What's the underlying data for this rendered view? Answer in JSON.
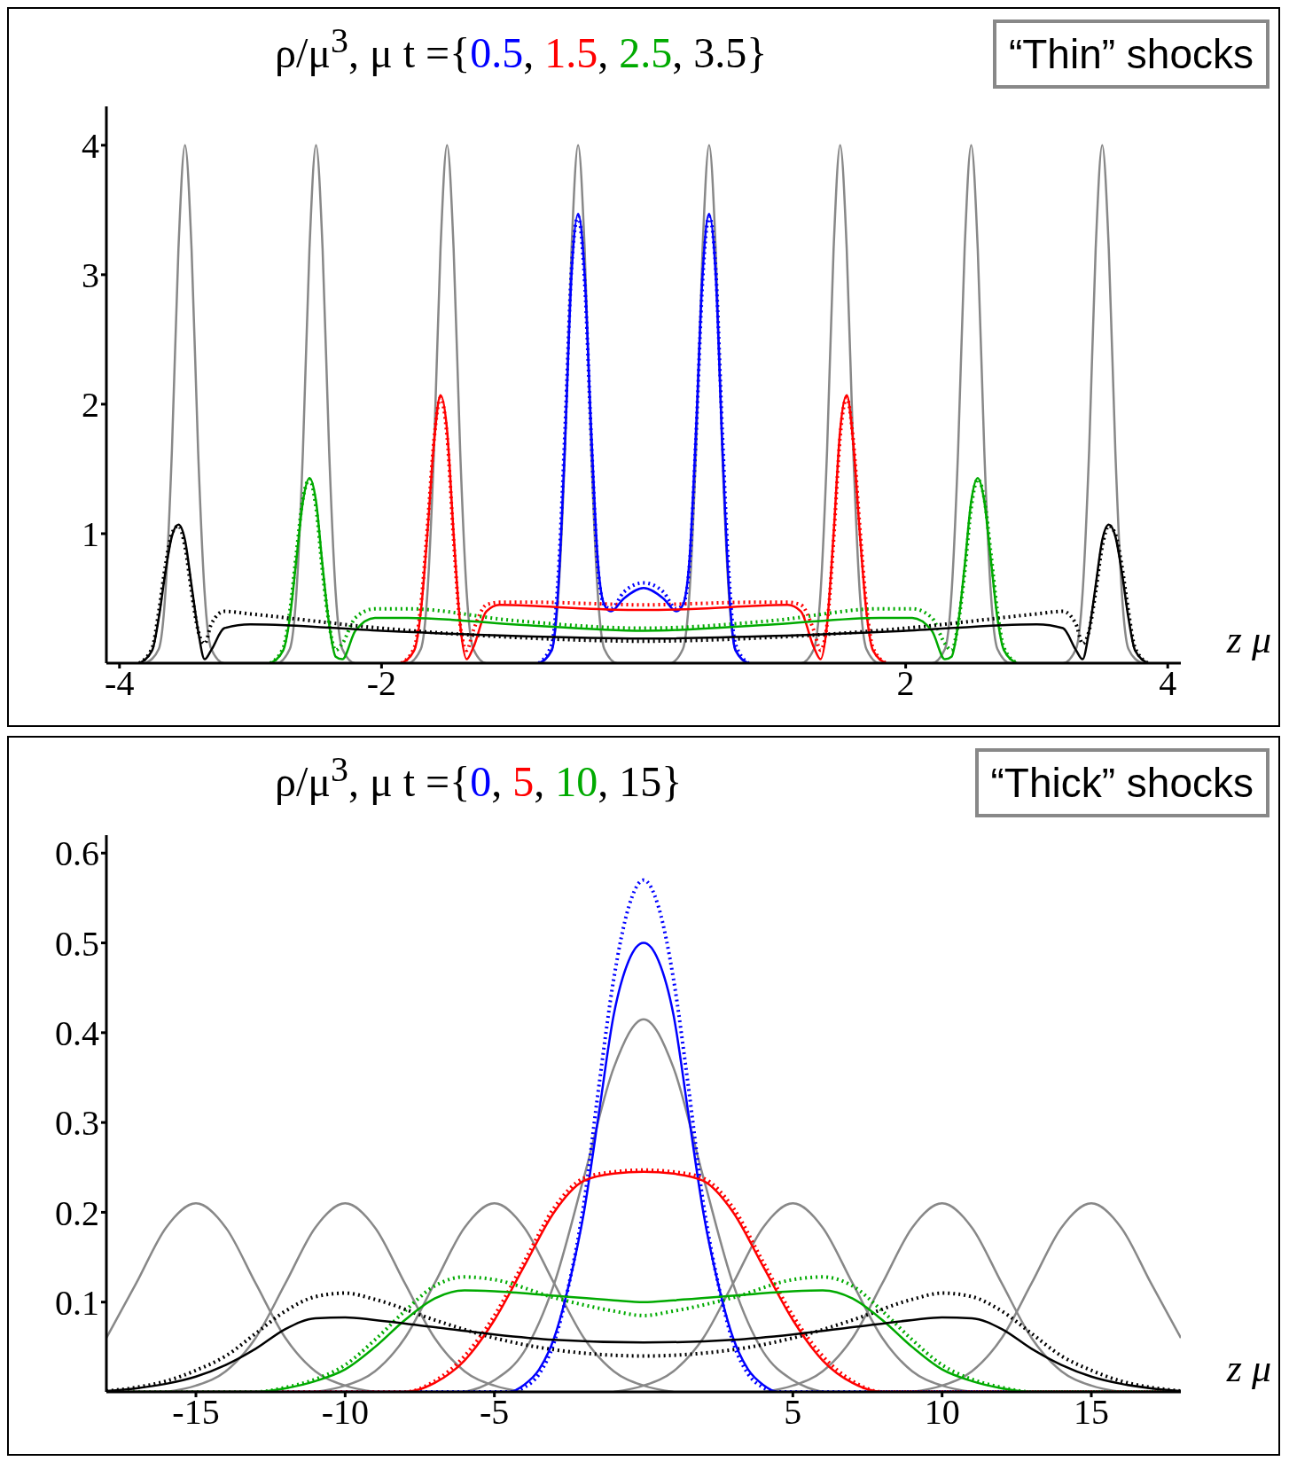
{
  "chart_data": [
    {
      "type": "line",
      "title": "ρ/μ$^{3}$, μ t ={0.5, 1.5, 2.5, 3.5}",
      "xlabel": "z μ",
      "annotations": [
        "“Thin” shocks"
      ],
      "xlim": [
        -4.1,
        4.1
      ],
      "ylim": [
        0,
        4.3
      ],
      "xticks": [
        -4,
        -2,
        2,
        4
      ],
      "yticks": [
        1,
        2,
        3,
        4
      ],
      "marker": "none",
      "line_style": "solid",
      "series": [
        {
          "color": "#888888",
          "x": [
            -3.8,
            -3.7,
            -3.65,
            -3.6,
            -3.55,
            -3.5,
            -3.45,
            -3.4,
            -3.35,
            -3.3,
            -3.2,
            -2.8,
            -2.7,
            -2.65,
            -2.6,
            -2.55,
            -2.5,
            -2.45,
            -2.4,
            -2.35,
            -2.3,
            -2.2,
            -1.8,
            -1.7,
            -1.65,
            -1.6,
            -1.55,
            -1.5,
            -1.45,
            -1.4,
            -1.35,
            -1.3,
            -1.2,
            -0.8,
            -0.7,
            -0.65,
            -0.6,
            -0.55,
            -0.5,
            -0.45,
            -0.4,
            -0.35,
            -0.3,
            -0.2,
            0.2,
            0.3,
            0.35,
            0.4,
            0.45,
            0.5,
            0.55,
            0.6,
            0.65,
            0.7,
            0.8,
            1.2,
            1.3,
            1.35,
            1.4,
            1.45,
            1.5,
            1.55,
            1.6,
            1.65,
            1.7,
            1.8,
            2.2,
            2.3,
            2.35,
            2.4,
            2.45,
            2.5,
            2.55,
            2.6,
            2.65,
            2.7,
            2.8,
            3.2,
            3.3,
            3.35,
            3.4,
            3.45,
            3.5,
            3.55,
            3.6,
            3.65,
            3.7,
            3.8
          ],
          "values": [
            0,
            0.11,
            0.54,
            1.64,
            3.2,
            4,
            3.2,
            1.64,
            0.54,
            0.11,
            0,
            0,
            0.11,
            0.54,
            1.64,
            3.2,
            4,
            3.2,
            1.64,
            0.54,
            0.11,
            0,
            0,
            0.11,
            0.54,
            1.64,
            3.2,
            4,
            3.2,
            1.64,
            0.54,
            0.11,
            0,
            0,
            0.11,
            0.54,
            1.64,
            3.2,
            4,
            3.2,
            1.64,
            0.54,
            0.11,
            0,
            0,
            0.11,
            0.54,
            1.64,
            3.2,
            4,
            3.2,
            1.64,
            0.54,
            0.11,
            0,
            0,
            0.11,
            0.54,
            1.64,
            3.2,
            4,
            3.2,
            1.64,
            0.54,
            0.11,
            0,
            0,
            0.11,
            0.54,
            1.64,
            3.2,
            4,
            3.2,
            1.64,
            0.54,
            0.11,
            0,
            0,
            0.11,
            0.54,
            1.64,
            3.2,
            4,
            3.2,
            1.64,
            0.54,
            0.11,
            0
          ]
        },
        {
          "color": "#0000ff",
          "line_style": "dotted",
          "x": [
            -0.8,
            -0.7,
            -0.65,
            -0.6,
            -0.55,
            -0.5,
            -0.45,
            -0.4,
            -0.35,
            -0.3,
            -0.25,
            -0.15,
            0,
            0.15,
            0.25,
            0.3,
            0.35,
            0.4,
            0.45,
            0.5,
            0.55,
            0.6,
            0.65,
            0.7,
            0.8
          ],
          "values": [
            0,
            0.15,
            0.7,
            1.8,
            3.05,
            3.45,
            2.95,
            1.75,
            0.75,
            0.45,
            0.42,
            0.55,
            0.62,
            0.55,
            0.42,
            0.45,
            0.75,
            1.75,
            2.95,
            3.45,
            3.05,
            1.8,
            0.7,
            0.15,
            0
          ]
        },
        {
          "color": "#ff0000",
          "line_style": "dotted",
          "x": [
            -1.85,
            -1.75,
            -1.7,
            -1.65,
            -1.6,
            -1.55,
            -1.5,
            -1.45,
            -1.4,
            -1.35,
            -1.3,
            -1.2,
            -1.1,
            -0.8,
            -0.4,
            0,
            0.4,
            0.8,
            1.1,
            1.2,
            1.3,
            1.35,
            1.4,
            1.45,
            1.5,
            1.55,
            1.6,
            1.65,
            1.7,
            1.75,
            1.85
          ],
          "values": [
            0,
            0.12,
            0.45,
            1.05,
            1.72,
            2.05,
            1.75,
            0.95,
            0.3,
            0.1,
            0.25,
            0.45,
            0.47,
            0.47,
            0.46,
            0.45,
            0.46,
            0.47,
            0.47,
            0.45,
            0.25,
            0.1,
            0.3,
            0.95,
            1.75,
            2.05,
            1.72,
            1.05,
            0.45,
            0.12,
            0
          ]
        },
        {
          "color": "#00aa00",
          "line_style": "dotted",
          "x": [
            -2.85,
            -2.75,
            -2.7,
            -2.65,
            -2.6,
            -2.55,
            -2.5,
            -2.45,
            -2.4,
            -2.35,
            -2.3,
            -2.2,
            -2.05,
            -1.8,
            -1,
            0,
            1,
            1.8,
            2.05,
            2.2,
            2.3,
            2.35,
            2.4,
            2.45,
            2.5,
            2.55,
            2.6,
            2.65,
            2.7,
            2.75,
            2.85
          ],
          "values": [
            0,
            0.12,
            0.4,
            0.85,
            1.27,
            1.42,
            1.2,
            0.7,
            0.3,
            0.1,
            0.15,
            0.35,
            0.42,
            0.42,
            0.33,
            0.27,
            0.33,
            0.42,
            0.42,
            0.35,
            0.15,
            0.1,
            0.3,
            0.7,
            1.2,
            1.42,
            1.27,
            0.85,
            0.4,
            0.12,
            0
          ]
        },
        {
          "color": "#000000",
          "line_style": "dotted",
          "x": [
            -3.85,
            -3.75,
            -3.7,
            -3.65,
            -3.6,
            -3.55,
            -3.5,
            -3.45,
            -3.4,
            -3.35,
            -3.3,
            -3.2,
            -3,
            -2,
            -1,
            0,
            1,
            2,
            3,
            3.2,
            3.3,
            3.35,
            3.4,
            3.45,
            3.5,
            3.55,
            3.6,
            3.65,
            3.7,
            3.75,
            3.85
          ],
          "values": [
            0,
            0.12,
            0.4,
            0.75,
            1,
            1.06,
            0.9,
            0.55,
            0.25,
            0.15,
            0.3,
            0.4,
            0.38,
            0.27,
            0.2,
            0.17,
            0.2,
            0.27,
            0.38,
            0.4,
            0.3,
            0.15,
            0.25,
            0.55,
            0.9,
            1.06,
            1,
            0.75,
            0.4,
            0.12,
            0
          ]
        },
        {
          "color": "#0000ff",
          "x": [
            -0.8,
            -0.7,
            -0.65,
            -0.6,
            -0.55,
            -0.5,
            -0.45,
            -0.4,
            -0.35,
            -0.3,
            -0.25,
            -0.15,
            0,
            0.15,
            0.25,
            0.3,
            0.35,
            0.4,
            0.45,
            0.5,
            0.55,
            0.6,
            0.65,
            0.7,
            0.8
          ],
          "values": [
            0,
            0.1,
            0.6,
            1.7,
            3,
            3.47,
            3,
            1.8,
            0.8,
            0.45,
            0.4,
            0.5,
            0.58,
            0.5,
            0.4,
            0.45,
            0.8,
            1.8,
            3,
            3.47,
            3,
            1.7,
            0.6,
            0.1,
            0
          ]
        },
        {
          "color": "#ff0000",
          "x": [
            -1.85,
            -1.75,
            -1.7,
            -1.65,
            -1.6,
            -1.55,
            -1.5,
            -1.45,
            -1.4,
            -1.35,
            -1.3,
            -1.2,
            -1.1,
            -0.8,
            -0.4,
            0,
            0.4,
            0.8,
            1.1,
            1.2,
            1.3,
            1.35,
            1.4,
            1.45,
            1.5,
            1.55,
            1.6,
            1.65,
            1.7,
            1.75,
            1.85
          ],
          "values": [
            0,
            0.1,
            0.4,
            1,
            1.7,
            2.07,
            1.8,
            1,
            0.3,
            0.03,
            0.12,
            0.4,
            0.45,
            0.44,
            0.42,
            0.41,
            0.42,
            0.44,
            0.45,
            0.4,
            0.12,
            0.03,
            0.3,
            1,
            1.8,
            2.07,
            1.7,
            1,
            0.4,
            0.1,
            0
          ]
        },
        {
          "color": "#00aa00",
          "x": [
            -2.85,
            -2.75,
            -2.7,
            -2.65,
            -2.6,
            -2.55,
            -2.5,
            -2.45,
            -2.4,
            -2.35,
            -2.3,
            -2.2,
            -2.05,
            -1.8,
            -1,
            0,
            1,
            1.8,
            2.05,
            2.2,
            2.3,
            2.35,
            2.4,
            2.45,
            2.5,
            2.55,
            2.6,
            2.65,
            2.7,
            2.75,
            2.85
          ],
          "values": [
            0,
            0.1,
            0.35,
            0.8,
            1.25,
            1.43,
            1.25,
            0.75,
            0.3,
            0.05,
            0.03,
            0.25,
            0.35,
            0.35,
            0.3,
            0.25,
            0.3,
            0.35,
            0.35,
            0.25,
            0.03,
            0.05,
            0.3,
            0.75,
            1.25,
            1.43,
            1.25,
            0.8,
            0.35,
            0.1,
            0
          ]
        },
        {
          "color": "#000000",
          "x": [
            -3.85,
            -3.75,
            -3.7,
            -3.65,
            -3.6,
            -3.55,
            -3.5,
            -3.45,
            -3.4,
            -3.35,
            -3.3,
            -3.2,
            -3,
            -2,
            -1,
            0,
            1,
            2,
            3,
            3.2,
            3.3,
            3.35,
            3.4,
            3.45,
            3.5,
            3.55,
            3.6,
            3.65,
            3.7,
            3.75,
            3.85
          ],
          "values": [
            0,
            0.1,
            0.35,
            0.7,
            0.98,
            1.07,
            0.95,
            0.6,
            0.25,
            0.03,
            0.1,
            0.27,
            0.3,
            0.25,
            0.21,
            0.19,
            0.21,
            0.25,
            0.3,
            0.27,
            0.1,
            0.03,
            0.25,
            0.6,
            0.95,
            1.07,
            0.98,
            0.7,
            0.35,
            0.1,
            0
          ]
        }
      ]
    },
    {
      "type": "line",
      "title": "ρ/μ$^{3}$, μ t ={0, 5, 10, 15}",
      "xlabel": "z μ",
      "annotations": [
        "“Thick” shocks"
      ],
      "xlim": [
        -18,
        18
      ],
      "ylim": [
        0,
        0.62
      ],
      "xticks": [
        -15,
        -10,
        -5,
        5,
        10,
        15
      ],
      "yticks": [
        0.1,
        0.2,
        0.3,
        0.4,
        0.5,
        0.6
      ],
      "marker": "none",
      "line_style": "solid",
      "series": [
        {
          "color": "#888888",
          "x": [
            -18,
            -17,
            -16,
            -15,
            -14,
            -13,
            -12,
            -11,
            -10,
            -9
          ],
          "values": [
            0.06,
            0.121,
            0.183,
            0.21,
            0.183,
            0.121,
            0.06,
            0.023,
            0.007,
            0
          ]
        },
        {
          "color": "#888888",
          "x": [
            -16,
            -15,
            -14,
            -13,
            -12,
            -11,
            -10,
            -9,
            -8,
            -7,
            -6,
            -5,
            -4
          ],
          "values": [
            0,
            0.007,
            0.023,
            0.06,
            0.121,
            0.183,
            0.21,
            0.183,
            0.121,
            0.06,
            0.023,
            0.007,
            0
          ]
        },
        {
          "color": "#888888",
          "x": [
            -11,
            -10,
            -9,
            -8,
            -7,
            -6,
            -5,
            -4,
            -3,
            -2,
            -1,
            0,
            1
          ],
          "values": [
            0,
            0.007,
            0.023,
            0.06,
            0.121,
            0.183,
            0.21,
            0.183,
            0.121,
            0.06,
            0.023,
            0.007,
            0
          ]
        },
        {
          "color": "#888888",
          "x": [
            -6,
            -5,
            -4,
            -3,
            -2,
            -1,
            0,
            1,
            2,
            3,
            4,
            5,
            6
          ],
          "values": [
            0,
            0.013,
            0.045,
            0.12,
            0.239,
            0.361,
            0.415,
            0.361,
            0.239,
            0.12,
            0.045,
            0.013,
            0
          ]
        },
        {
          "color": "#888888",
          "x": [
            -1,
            0,
            1,
            2,
            3,
            4,
            5,
            6,
            7,
            8,
            9,
            10,
            11
          ],
          "values": [
            0,
            0.007,
            0.023,
            0.06,
            0.121,
            0.183,
            0.21,
            0.183,
            0.121,
            0.06,
            0.023,
            0.007,
            0
          ]
        },
        {
          "color": "#888888",
          "x": [
            4,
            5,
            6,
            7,
            8,
            9,
            10,
            11,
            12,
            13,
            14,
            15,
            16
          ],
          "values": [
            0,
            0.007,
            0.023,
            0.06,
            0.121,
            0.183,
            0.21,
            0.183,
            0.121,
            0.06,
            0.023,
            0.007,
            0
          ]
        },
        {
          "color": "#888888",
          "x": [
            9,
            10,
            11,
            12,
            13,
            14,
            15,
            16,
            17,
            18
          ],
          "values": [
            0,
            0.007,
            0.023,
            0.06,
            0.121,
            0.183,
            0.21,
            0.183,
            0.121,
            0.06
          ]
        },
        {
          "color": "#0000ff",
          "line_style": "dotted",
          "x": [
            -18,
            -4.5,
            -4,
            -3.5,
            -3,
            -2.5,
            -2,
            -1.5,
            -1,
            -0.5,
            0,
            0.5,
            1,
            1.5,
            2,
            2.5,
            3,
            3.5,
            4,
            4.5,
            18
          ],
          "values": [
            0,
            0,
            0.005,
            0.02,
            0.055,
            0.12,
            0.21,
            0.34,
            0.46,
            0.54,
            0.57,
            0.54,
            0.46,
            0.34,
            0.21,
            0.12,
            0.055,
            0.02,
            0.005,
            0,
            0
          ]
        },
        {
          "color": "#ff0000",
          "line_style": "dotted",
          "x": [
            -18,
            -8,
            -7,
            -6,
            -5,
            -4,
            -3,
            -2,
            -1,
            0,
            1,
            2,
            3,
            4,
            5,
            6,
            7,
            8,
            18
          ],
          "values": [
            0,
            0,
            0.012,
            0.04,
            0.085,
            0.145,
            0.205,
            0.238,
            0.245,
            0.247,
            0.245,
            0.238,
            0.205,
            0.145,
            0.085,
            0.04,
            0.012,
            0,
            0
          ]
        },
        {
          "color": "#00aa00",
          "line_style": "dotted",
          "x": [
            -18,
            -13,
            -12,
            -11,
            -10,
            -9,
            -8,
            -7,
            -6,
            -5,
            -3,
            -1,
            0,
            1,
            3,
            5,
            6,
            7,
            8,
            9,
            10,
            11,
            12,
            13,
            18
          ],
          "values": [
            0,
            0,
            0.005,
            0.014,
            0.03,
            0.058,
            0.09,
            0.118,
            0.128,
            0.125,
            0.105,
            0.09,
            0.085,
            0.09,
            0.105,
            0.125,
            0.128,
            0.118,
            0.09,
            0.058,
            0.03,
            0.014,
            0.005,
            0,
            0
          ]
        },
        {
          "color": "#000000",
          "line_style": "dotted",
          "x": [
            -18,
            -17,
            -16,
            -15,
            -14,
            -13,
            -12,
            -11,
            -10,
            -9,
            -7,
            -5,
            -3,
            0,
            3,
            5,
            7,
            9,
            10,
            11,
            12,
            13,
            14,
            15,
            16,
            17,
            18
          ],
          "values": [
            0.001,
            0.005,
            0.012,
            0.024,
            0.04,
            0.065,
            0.09,
            0.106,
            0.11,
            0.103,
            0.08,
            0.06,
            0.047,
            0.04,
            0.047,
            0.06,
            0.08,
            0.103,
            0.11,
            0.106,
            0.09,
            0.065,
            0.04,
            0.024,
            0.012,
            0.005,
            0.001
          ]
        },
        {
          "color": "#0000ff",
          "x": [
            -18,
            -4.5,
            -4,
            -3.5,
            -3,
            -2.5,
            -2,
            -1.5,
            -1,
            -0.5,
            0,
            0.5,
            1,
            1.5,
            2,
            2.5,
            3,
            3.5,
            4,
            4.5,
            18
          ],
          "values": [
            0,
            0,
            0.008,
            0.025,
            0.06,
            0.12,
            0.2,
            0.31,
            0.42,
            0.48,
            0.5,
            0.48,
            0.42,
            0.31,
            0.2,
            0.12,
            0.06,
            0.025,
            0.008,
            0,
            0
          ]
        },
        {
          "color": "#ff0000",
          "x": [
            -18,
            -8,
            -7,
            -6,
            -5,
            -4,
            -3,
            -2,
            -1,
            0,
            1,
            2,
            3,
            4,
            5,
            6,
            7,
            8,
            18
          ],
          "values": [
            0,
            0,
            0.01,
            0.035,
            0.08,
            0.14,
            0.2,
            0.235,
            0.243,
            0.245,
            0.243,
            0.235,
            0.2,
            0.14,
            0.08,
            0.035,
            0.01,
            0,
            0
          ]
        },
        {
          "color": "#00aa00",
          "x": [
            -18,
            -13,
            -12,
            -11,
            -10,
            -9,
            -8,
            -7,
            -6,
            -5,
            -3,
            -1,
            0,
            1,
            3,
            5,
            6,
            7,
            8,
            9,
            10,
            11,
            12,
            13,
            18
          ],
          "values": [
            0,
            0,
            0.004,
            0.012,
            0.025,
            0.05,
            0.08,
            0.104,
            0.113,
            0.112,
            0.107,
            0.102,
            0.1,
            0.102,
            0.107,
            0.112,
            0.113,
            0.104,
            0.08,
            0.05,
            0.025,
            0.012,
            0.004,
            0,
            0
          ]
        },
        {
          "color": "#000000",
          "x": [
            -18,
            -17,
            -16,
            -15,
            -14,
            -13,
            -12,
            -11,
            -10,
            -9,
            -7,
            -5,
            -3,
            0,
            3,
            5,
            7,
            9,
            10,
            11,
            12,
            13,
            14,
            15,
            16,
            17,
            18
          ],
          "values": [
            0.001,
            0.004,
            0.009,
            0.017,
            0.03,
            0.048,
            0.07,
            0.082,
            0.083,
            0.08,
            0.072,
            0.064,
            0.058,
            0.055,
            0.058,
            0.064,
            0.072,
            0.08,
            0.083,
            0.082,
            0.07,
            0.048,
            0.03,
            0.017,
            0.009,
            0.004,
            0.001
          ]
        }
      ]
    }
  ]
}
